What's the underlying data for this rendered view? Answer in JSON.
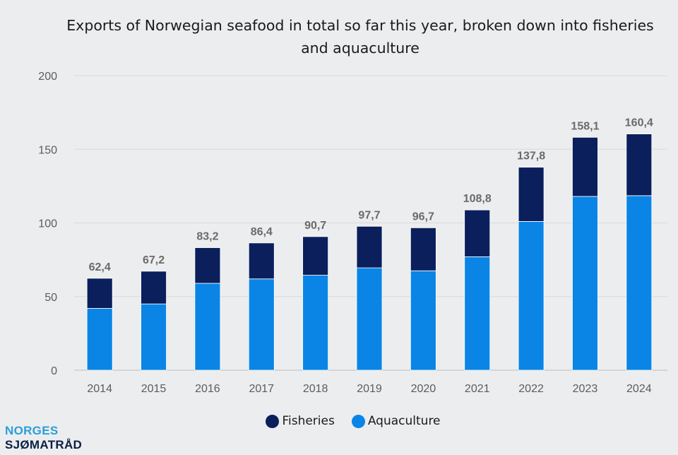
{
  "chart_data": {
    "type": "bar",
    "stacked": true,
    "title": "Exports of Norwegian seafood in total so far this year, broken down into fisheries and aquaculture",
    "categories": [
      "2014",
      "2015",
      "2016",
      "2017",
      "2018",
      "2019",
      "2020",
      "2021",
      "2022",
      "2023",
      "2024"
    ],
    "series": [
      {
        "name": "Aquaculture",
        "color": "#0a85e6",
        "values": [
          42,
          45,
          59,
          62,
          64.5,
          69.5,
          67.5,
          77,
          101,
          118,
          118.5
        ]
      },
      {
        "name": "Fisheries",
        "color": "#0a1f5c",
        "values": [
          20.4,
          22.2,
          24.2,
          24.4,
          26.2,
          28.2,
          29.2,
          31.8,
          36.8,
          40.1,
          41.9
        ]
      }
    ],
    "totals": [
      62.4,
      67.2,
      83.2,
      86.4,
      90.7,
      97.7,
      96.7,
      108.8,
      137.8,
      158.1,
      160.4
    ],
    "total_labels": [
      "62,4",
      "67,2",
      "83,2",
      "86,4",
      "90,7",
      "97,7",
      "96,7",
      "108,8",
      "137,8",
      "158,1",
      "160,4"
    ],
    "ylim": [
      0,
      200
    ],
    "yticks": [
      0,
      50,
      100,
      150,
      200
    ],
    "grid": true,
    "legend_position": "bottom-center"
  },
  "legend": [
    {
      "label": "Fisheries",
      "color": "#0a1f5c"
    },
    {
      "label": "Aquaculture",
      "color": "#0a85e6"
    }
  ],
  "logo": {
    "line1": "NORGES",
    "line2": "SJØMATRÅD"
  }
}
